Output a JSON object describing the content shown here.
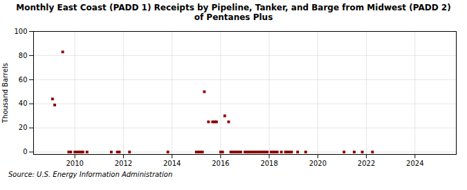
{
  "chart_data": {
    "type": "scatter",
    "title": "Monthly East Coast (PADD 1) Receipts by Pipeline, Tanker, and Barge from Midwest (PADD 2)\nof Pentanes Plus",
    "ylabel": "Thousand Barrels",
    "caption": "Source: U.S. Energy Information Administration",
    "color": "#8B0000",
    "marker": "square",
    "x": [
      2009.08,
      2009.17,
      2009.5,
      2009.75,
      2009.83,
      2010.0,
      2010.08,
      2010.17,
      2010.25,
      2010.33,
      2010.5,
      2011.5,
      2011.75,
      2011.83,
      2012.25,
      2013.83,
      2015.0,
      2015.08,
      2015.17,
      2015.25,
      2015.33,
      2015.5,
      2015.67,
      2015.75,
      2015.83,
      2016.0,
      2016.08,
      2016.17,
      2016.33,
      2016.42,
      2016.5,
      2016.58,
      2016.67,
      2016.75,
      2016.83,
      2017.0,
      2017.08,
      2017.17,
      2017.25,
      2017.33,
      2017.42,
      2017.5,
      2017.58,
      2017.67,
      2017.75,
      2017.83,
      2017.92,
      2018.08,
      2018.17,
      2018.25,
      2018.33,
      2018.5,
      2018.67,
      2018.75,
      2018.83,
      2018.92,
      2019.17,
      2019.5,
      2021.08,
      2021.5,
      2021.83,
      2022.25
    ],
    "values": [
      44,
      39,
      83,
      0,
      0,
      0,
      0,
      0,
      0,
      0,
      0,
      0,
      0,
      0,
      0,
      0,
      0,
      0,
      0,
      0,
      50,
      25,
      25,
      25,
      25,
      0,
      0,
      30,
      25,
      0,
      0,
      0,
      0,
      0,
      0,
      0,
      0,
      0,
      0,
      0,
      0,
      0,
      0,
      0,
      0,
      0,
      0,
      0,
      0,
      0,
      0,
      0,
      0,
      0,
      0,
      0,
      0,
      0,
      0,
      0,
      0,
      0
    ],
    "xlim": [
      2008.3,
      2025.7
    ],
    "ylim": [
      -2,
      100
    ],
    "xticks": [
      2010,
      2012,
      2014,
      2016,
      2018,
      2020,
      2022,
      2024
    ],
    "yticks": [
      0,
      20,
      40,
      60,
      80,
      100
    ],
    "grid": true
  }
}
